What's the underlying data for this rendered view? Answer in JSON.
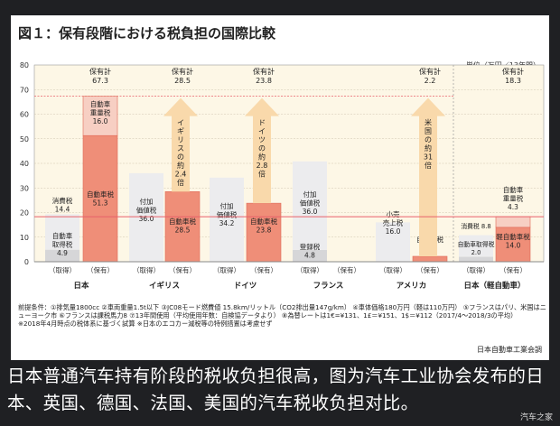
{
  "title": "図１：保有段階における税負担の国際比較",
  "unit": "単位（万円／13年間）",
  "chart_data": {
    "type": "bar",
    "stacked": true,
    "ylim": [
      0,
      80
    ],
    "yticks": [
      0,
      10,
      20,
      30,
      40,
      50,
      60,
      70,
      80
    ],
    "grid": true,
    "reference_line": 18.3,
    "groups": [
      {
        "country": "日本",
        "bars": [
          {
            "label": "（取得）",
            "segments": [
              {
                "name": "自動車取得税",
                "value": 4.9,
                "text": [
                  "自動車",
                  "取得税",
                  "4.9"
                ]
              },
              {
                "name": "消費税",
                "value": 14.4,
                "text": [
                  "消費税",
                  "14.4"
                ]
              }
            ]
          },
          {
            "label": "（保有）",
            "total_label": [
              "保有計",
              "67.3"
            ],
            "segments": [
              {
                "name": "自動車税",
                "value": 51.3,
                "text": [
                  "自動車税",
                  "51.3"
                ]
              },
              {
                "name": "自動車重量税",
                "value": 16.0,
                "text": [
                  "自動車",
                  "重量税",
                  "16.0"
                ]
              }
            ]
          }
        ]
      },
      {
        "country": "イギリス",
        "arrow": [
          "イ",
          "ギ",
          "リ",
          "ス",
          "の",
          "約",
          "2.4",
          "倍"
        ],
        "bars": [
          {
            "label": "（取得）",
            "segments": [
              {
                "name": "付加価値税",
                "value": 36.0,
                "text": [
                  "付加",
                  "価値税",
                  "36.0"
                ]
              }
            ]
          },
          {
            "label": "（保有）",
            "total_label": [
              "保有計",
              "28.5"
            ],
            "segments": [
              {
                "name": "自動車税",
                "value": 28.5,
                "text": [
                  "自動車税",
                  "28.5"
                ]
              }
            ]
          }
        ]
      },
      {
        "country": "ドイツ",
        "arrow": [
          "ド",
          "イ",
          "ツ",
          "の",
          "約",
          "2.8",
          "倍"
        ],
        "bars": [
          {
            "label": "（取得）",
            "segments": [
              {
                "name": "付加価値税",
                "value": 34.2,
                "text": [
                  "付加",
                  "価値税",
                  "34.2"
                ]
              }
            ]
          },
          {
            "label": "（保有）",
            "total_label": [
              "保有計",
              "23.8"
            ],
            "segments": [
              {
                "name": "自動車税",
                "value": 23.8,
                "text": [
                  "自動車税",
                  "23.8"
                ]
              }
            ]
          }
        ]
      },
      {
        "country": "フランス",
        "bars": [
          {
            "label": "（取得）",
            "segments": [
              {
                "name": "登録税",
                "value": 4.8,
                "text": [
                  "登録税",
                  "4.8"
                ]
              },
              {
                "name": "付加価値税",
                "value": 36.0,
                "text": [
                  "付加",
                  "価値税",
                  "36.0"
                ]
              }
            ]
          },
          {
            "label": "（保有）",
            "segments": []
          }
        ]
      },
      {
        "country": "アメリカ",
        "arrow": [
          "米",
          "国",
          "の",
          "約",
          "31",
          "倍"
        ],
        "bars": [
          {
            "label": "（取得）",
            "segments": [
              {
                "name": "小売売上税",
                "value": 16.0,
                "text": [
                  "小売",
                  "売上税",
                  "16.0"
                ]
              }
            ]
          },
          {
            "label": "（保有）",
            "total_label": [
              "保有計",
              "2.2"
            ],
            "segments": [
              {
                "name": "自動車税",
                "value": 2.2,
                "text": [
                  "自動車税",
                  "2.2"
                ]
              }
            ]
          }
        ]
      },
      {
        "country": "日本（軽自動車）",
        "bars": [
          {
            "label": "（取得）",
            "segments": [
              {
                "name": "自動車取得税",
                "value": 2.0,
                "text": [
                  "自動車取得税",
                  "2.0"
                ]
              },
              {
                "name": "消費税",
                "value": 8.8,
                "text": [
                  "消費税 8.8"
                ]
              }
            ]
          },
          {
            "label": "（保有）",
            "total_label": [
              "保有計",
              "18.3"
            ],
            "segments": [
              {
                "name": "軽自動車税",
                "value": 14.0,
                "text": [
                  "軽自動車税",
                  "14.0"
                ]
              },
              {
                "name": "自動車重量税",
                "value": 4.3,
                "text": [
                  "自動車",
                  "重量税",
                  "4.3"
                ]
              }
            ]
          }
        ]
      }
    ]
  },
  "notes": [
    "前提条件：①排気量1800cc ②車両重量1.5t以下 ③JC08モード燃費値 15.8km/リットル（CO2排出量147g/km） ④車体価格180万円（軽は110万円） ⑤フランスはパリ、米国はニューヨーク市 ⑥フランスは課税馬力8 ⑦13年間使用（平均使用年数：自検協データより） ⑧為替レートは1€=¥131、1£＝¥151、1$＝¥112（2017/4～2018/3の平均）",
    "※2018年4月時点の税体系に基づく試算 ※日本のエコカー減税等の特例措置は考慮せず"
  ],
  "source": "日本自動車工業会調",
  "caption": "日本普通汽车持有阶段的税收负担很高，图为汽车工业协会发布的日本、英国、德国、法国、美国的汽车税收负担对比。",
  "watermark": "汽车之家",
  "colors": {
    "background_plot": "#fdf7e6",
    "acquisition": "#ececee",
    "acquisition_dark": "#d6d6d8",
    "ownership": "#ef8e78",
    "ownership_light": "#f7cfc3",
    "arrow": "#f9d9ab",
    "reference_line": "#e8606a"
  }
}
